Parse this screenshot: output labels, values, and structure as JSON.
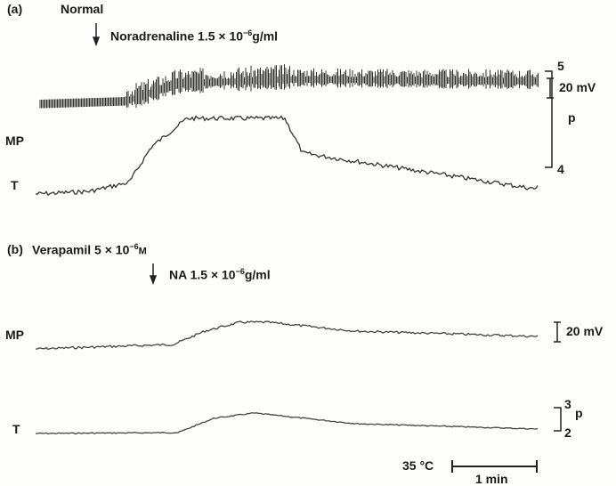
{
  "panel_a": {
    "label": "(a)",
    "condition": "Normal",
    "drug_label": "Noradrenaline 1.5 × 10",
    "drug_exp": "−6",
    "drug_unit": "g/ml",
    "mp_label": "MP",
    "t_label": "T",
    "mp_scale": "20 mV",
    "t_scale_top": "5",
    "t_scale_unit": "p",
    "t_scale_bottom": "4"
  },
  "panel_b": {
    "label": "(b)",
    "condition": "Verapamil 5 × 10",
    "condition_exp": "−6",
    "condition_unit": "M",
    "drug_label": "NA 1.5 × 10",
    "drug_exp": "−6",
    "drug_unit": "g/ml",
    "mp_label": "MP",
    "t_label": "T",
    "mp_scale": "20 mV",
    "t_scale_top": "3",
    "t_scale_unit": "p",
    "t_scale_bottom": "2"
  },
  "footer": {
    "temperature": "35 °C",
    "time_scale": "1 min"
  }
}
